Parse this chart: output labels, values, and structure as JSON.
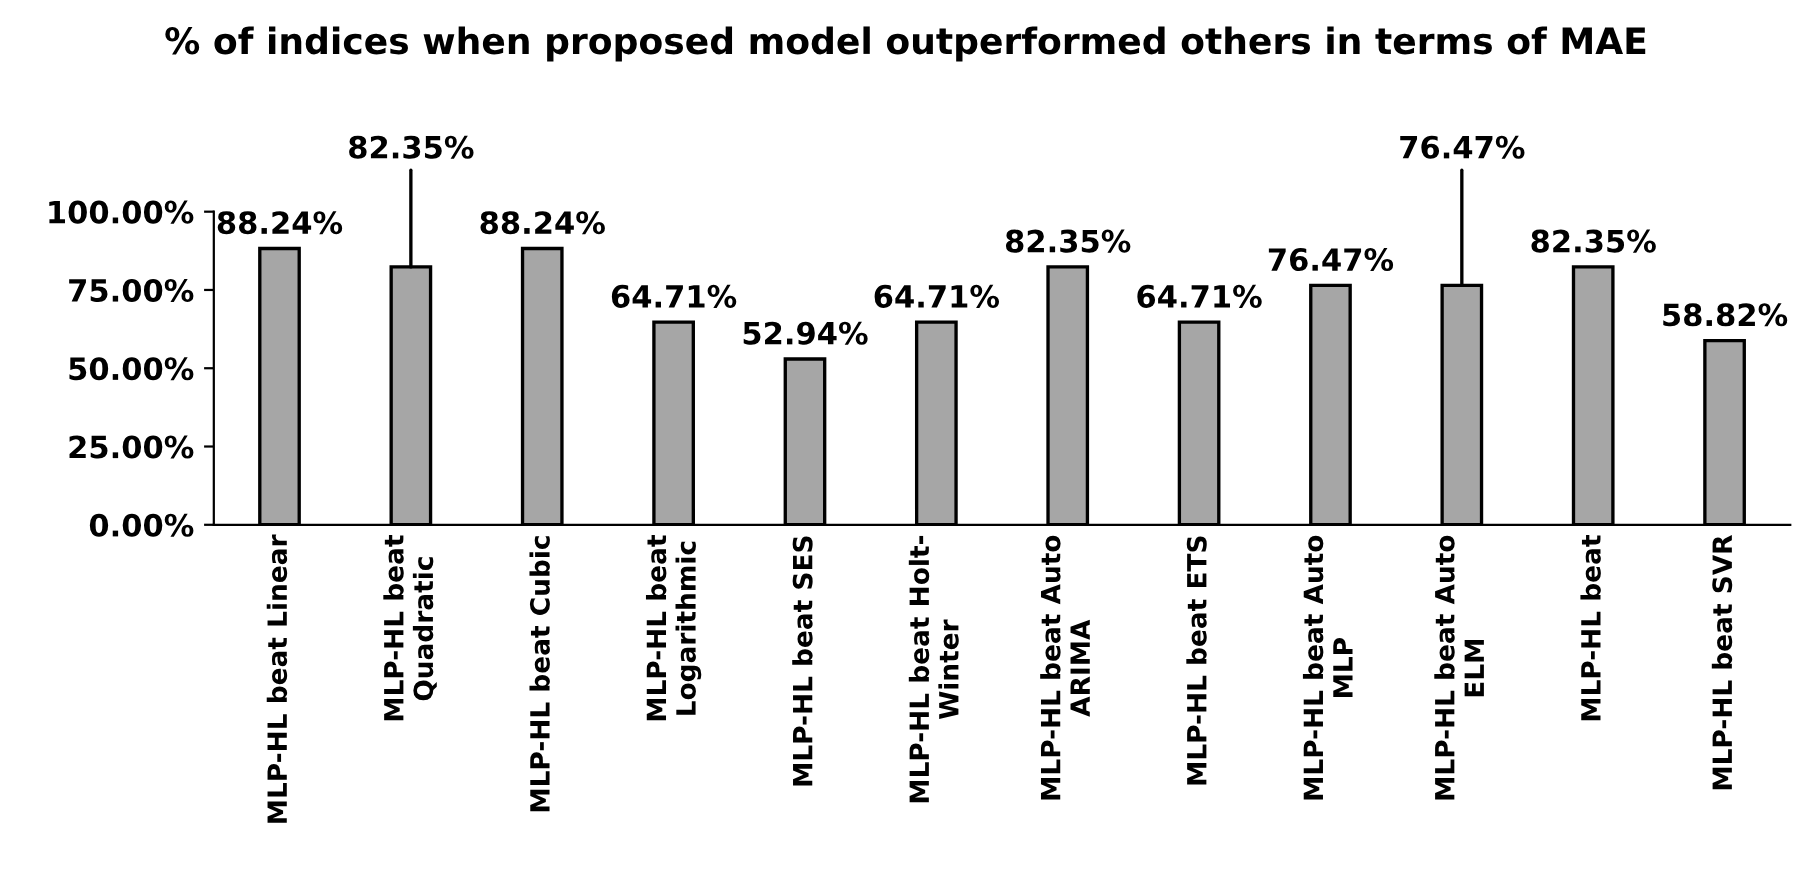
{
  "chart_data": {
    "type": "bar",
    "title": "% of indices when proposed model outperformed others in terms of MAE",
    "categories": [
      "MLP-HL beat Linear",
      "MLP-HL beat\nQuadratic",
      "MLP-HL beat Cubic",
      "MLP-HL beat\nLogarithmic",
      "MLP-HL beat SES",
      "MLP-HL beat Holt-\nWinter",
      "MLP-HL beat Auto\nARIMA",
      "MLP-HL beat ETS",
      "MLP-HL beat Auto\nMLP",
      "MLP-HL beat Auto\nELM",
      "MLP-HL beat",
      "MLP-HL beat SVR"
    ],
    "values": [
      88.24,
      82.35,
      88.24,
      64.71,
      52.94,
      64.71,
      82.35,
      64.71,
      76.47,
      76.47,
      82.35,
      58.82
    ],
    "value_labels": [
      "88.24%",
      "82.35%",
      "88.24%",
      "64.71%",
      "52.94%",
      "64.71%",
      "82.35%",
      "64.71%",
      "76.47%",
      "76.47%",
      "82.35%",
      "58.82%"
    ],
    "color": "#a6a6a6",
    "ylim": [
      0,
      100
    ],
    "yticks": [
      {
        "value": 0,
        "label": "0.00%"
      },
      {
        "value": 25,
        "label": "25.00%"
      },
      {
        "value": 50,
        "label": "50.00%"
      },
      {
        "value": 75,
        "label": "75.00%"
      },
      {
        "value": 100,
        "label": "100.00%"
      }
    ],
    "grid": false
  }
}
